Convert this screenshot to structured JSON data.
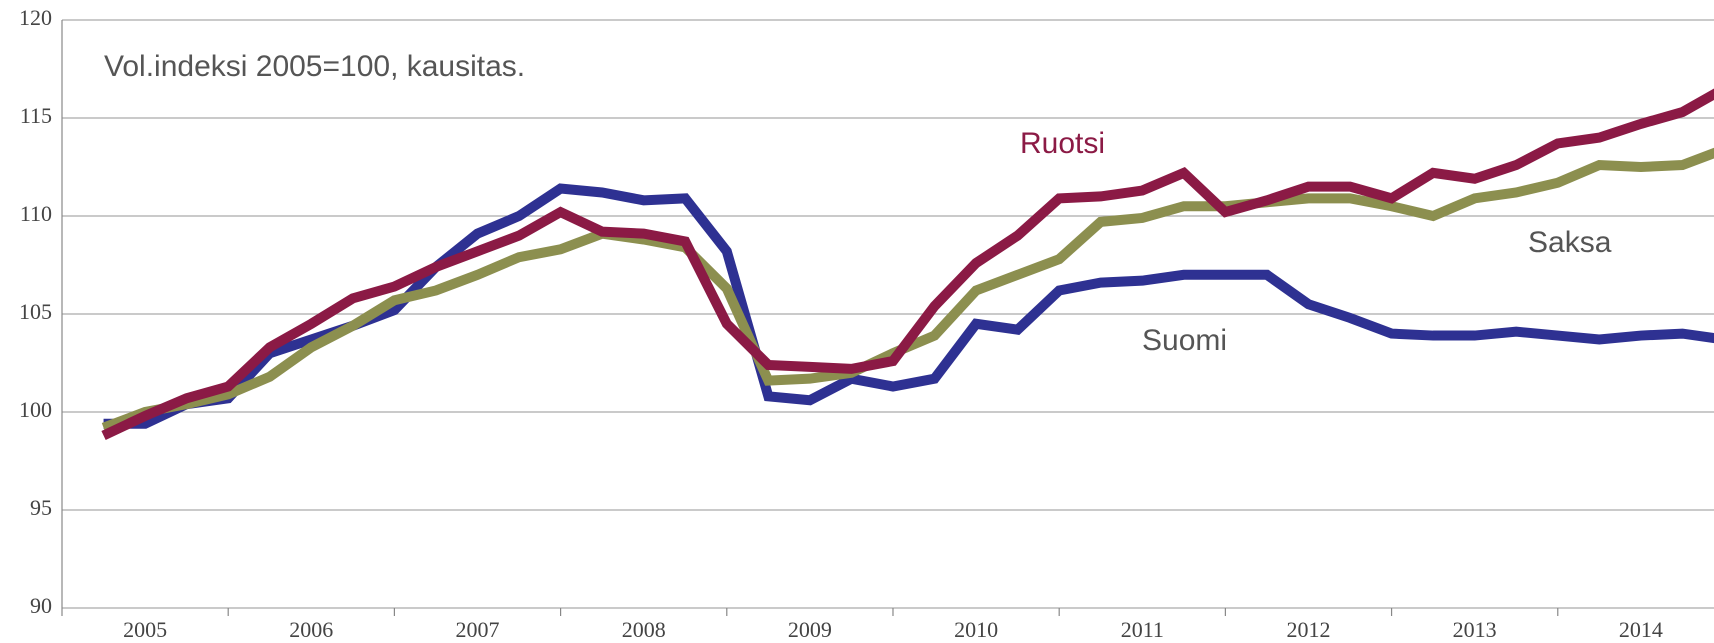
{
  "chart_data": {
    "type": "line",
    "annotations": [
      "Vol.indeksi 2005=100, kausitas."
    ],
    "x": [
      2005.25,
      2005.5,
      2005.75,
      2006.0,
      2006.25,
      2006.5,
      2006.75,
      2007.0,
      2007.25,
      2007.5,
      2007.75,
      2008.0,
      2008.25,
      2008.5,
      2008.75,
      2009.0,
      2009.25,
      2009.5,
      2009.75,
      2010.0,
      2010.25,
      2010.5,
      2010.75,
      2011.0,
      2011.25,
      2011.5,
      2011.75,
      2012.0,
      2012.25,
      2012.5,
      2012.75,
      2013.0,
      2013.25,
      2013.5,
      2013.75,
      2014.0,
      2014.25,
      2014.5,
      2014.75,
      2015.0
    ],
    "series": [
      {
        "name": "Suomi",
        "color": "#2e3192",
        "values": [
          99.4,
          99.4,
          100.4,
          100.7,
          103.0,
          103.7,
          104.4,
          105.2,
          107.4,
          109.1,
          110.0,
          111.4,
          111.2,
          110.8,
          110.9,
          108.2,
          100.8,
          100.6,
          101.7,
          101.3,
          101.7,
          104.5,
          104.2,
          106.2,
          106.6,
          106.7,
          107.0,
          107.0,
          107.0,
          105.5,
          104.8,
          104.0,
          103.9,
          103.9,
          104.1,
          103.9,
          103.7,
          103.9,
          104.0,
          103.7
        ]
      },
      {
        "name": "Saksa",
        "color": "#8c8f4f",
        "values": [
          99.2,
          100.0,
          100.4,
          100.9,
          101.8,
          103.3,
          104.4,
          105.7,
          106.2,
          107.0,
          107.9,
          108.3,
          109.1,
          108.8,
          108.4,
          106.3,
          101.6,
          101.7,
          102.0,
          103.0,
          103.9,
          106.2,
          107.0,
          107.8,
          109.7,
          109.9,
          110.5,
          110.5,
          110.7,
          110.9,
          110.9,
          110.5,
          110.0,
          110.9,
          111.2,
          111.7,
          112.6,
          112.5,
          112.6,
          113.4
        ]
      },
      {
        "name": "Ruotsi",
        "color": "#8b1a45",
        "values": [
          98.8,
          99.8,
          100.7,
          101.3,
          103.3,
          104.5,
          105.8,
          106.4,
          107.4,
          108.2,
          109.0,
          110.2,
          109.2,
          109.1,
          108.7,
          104.5,
          102.4,
          102.3,
          102.2,
          102.6,
          105.4,
          107.6,
          109.0,
          110.9,
          111.0,
          111.3,
          112.2,
          110.2,
          110.8,
          111.5,
          111.5,
          110.9,
          112.2,
          111.9,
          112.6,
          113.7,
          114.0,
          114.7,
          115.3,
          116.5
        ]
      }
    ],
    "xlim": [
      2005,
      2014.94
    ],
    "xticks": [
      {
        "value": 2005.5,
        "label": "2005"
      },
      {
        "value": 2006.5,
        "label": "2006"
      },
      {
        "value": 2007.5,
        "label": "2007"
      },
      {
        "value": 2008.5,
        "label": "2008"
      },
      {
        "value": 2009.5,
        "label": "2009"
      },
      {
        "value": 2010.5,
        "label": "2010"
      },
      {
        "value": 2011.5,
        "label": "2011"
      },
      {
        "value": 2012.5,
        "label": "2012"
      },
      {
        "value": 2013.5,
        "label": "2013"
      },
      {
        "value": 2014.5,
        "label": "2014"
      }
    ],
    "ylim": [
      90,
      120
    ],
    "yticks": [
      90,
      95,
      100,
      105,
      110,
      115,
      120
    ],
    "grid": true
  }
}
